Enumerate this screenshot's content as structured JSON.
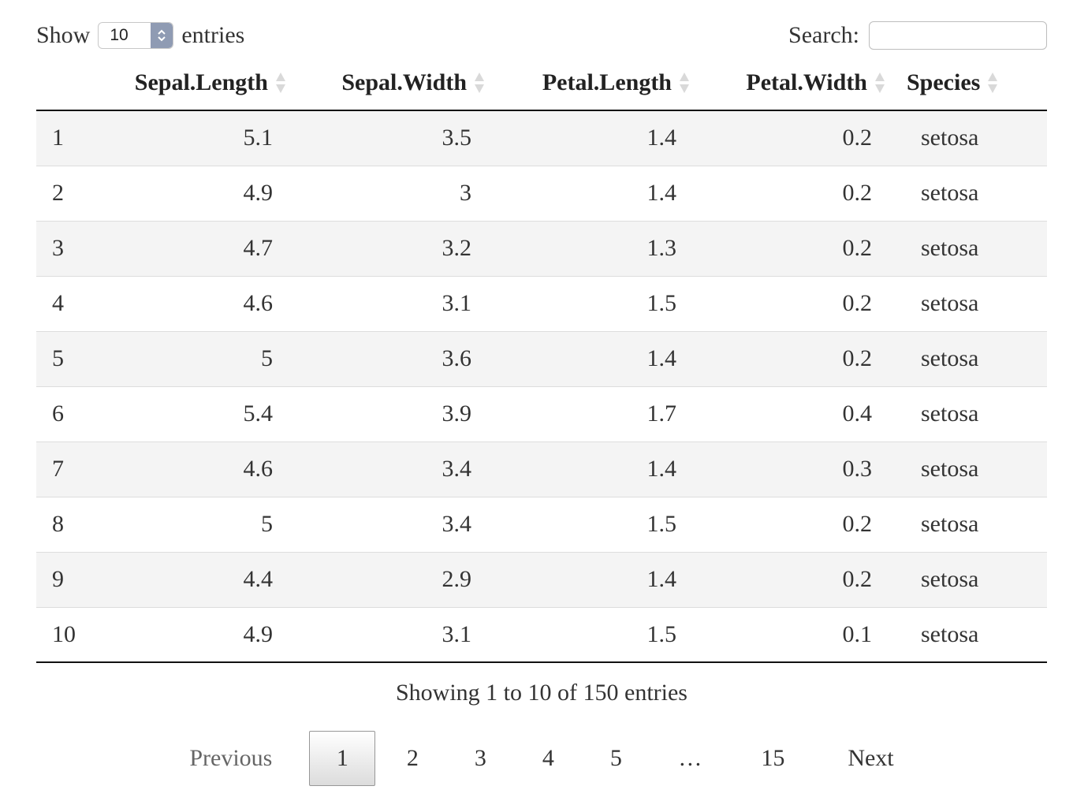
{
  "length_control": {
    "show_label": "Show",
    "selected": "10",
    "entries_label": "entries"
  },
  "search": {
    "label": "Search:",
    "value": "",
    "placeholder": ""
  },
  "table": {
    "columns": [
      "",
      "Sepal.Length",
      "Sepal.Width",
      "Petal.Length",
      "Petal.Width",
      "Species"
    ],
    "rows": [
      [
        "1",
        "5.1",
        "3.5",
        "1.4",
        "0.2",
        "setosa"
      ],
      [
        "2",
        "4.9",
        "3",
        "1.4",
        "0.2",
        "setosa"
      ],
      [
        "3",
        "4.7",
        "3.2",
        "1.3",
        "0.2",
        "setosa"
      ],
      [
        "4",
        "4.6",
        "3.1",
        "1.5",
        "0.2",
        "setosa"
      ],
      [
        "5",
        "5",
        "3.6",
        "1.4",
        "0.2",
        "setosa"
      ],
      [
        "6",
        "5.4",
        "3.9",
        "1.7",
        "0.4",
        "setosa"
      ],
      [
        "7",
        "4.6",
        "3.4",
        "1.4",
        "0.3",
        "setosa"
      ],
      [
        "8",
        "5",
        "3.4",
        "1.5",
        "0.2",
        "setosa"
      ],
      [
        "9",
        "4.4",
        "2.9",
        "1.4",
        "0.2",
        "setosa"
      ],
      [
        "10",
        "4.9",
        "3.1",
        "1.5",
        "0.1",
        "setosa"
      ]
    ]
  },
  "info": "Showing 1 to 10 of 150 entries",
  "pagination": {
    "previous": "Previous",
    "pages": [
      "1",
      "2",
      "3",
      "4",
      "5"
    ],
    "ellipsis": "…",
    "last": "15",
    "next": "Next",
    "current": "1"
  },
  "colors": {
    "select_arrow_bg": "#8f9bb3",
    "odd_row_bg": "#f4f4f4",
    "border": "#111111"
  }
}
